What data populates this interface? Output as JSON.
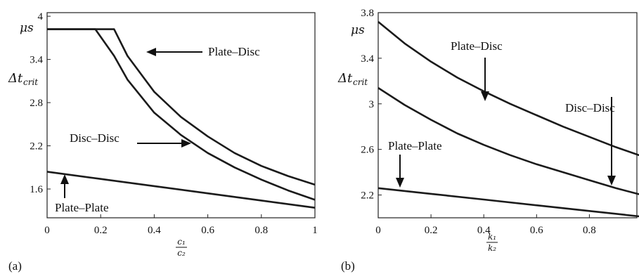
{
  "chart_data": [
    {
      "type": "line",
      "panel_label": "(a)",
      "xlabel_num": "c₁",
      "xlabel_den": "c₂",
      "ylabel_unit": "μs",
      "ylabel_main": "Δt",
      "ylabel_sub": "crit",
      "xlim": [
        0,
        1
      ],
      "ylim": [
        1.2,
        4.05
      ],
      "xticks": [
        "0",
        "0.2",
        "0.4",
        "0.6",
        "0.8",
        "1"
      ],
      "yticks": [
        "1.6",
        "2.2",
        "2.8",
        "3.4",
        "4"
      ],
      "grid": false,
      "series": [
        {
          "name": "Plate–Disc",
          "x": [
            0,
            0.25,
            0.3,
            0.4,
            0.5,
            0.6,
            0.7,
            0.8,
            0.9,
            1.0
          ],
          "y": [
            3.82,
            3.82,
            3.45,
            2.95,
            2.6,
            2.33,
            2.1,
            1.92,
            1.78,
            1.66
          ]
        },
        {
          "name": "Disc–Disc",
          "x": [
            0,
            0.18,
            0.25,
            0.3,
            0.4,
            0.5,
            0.6,
            0.7,
            0.8,
            0.9,
            1.0
          ],
          "y": [
            3.82,
            3.82,
            3.45,
            3.12,
            2.66,
            2.35,
            2.1,
            1.9,
            1.73,
            1.58,
            1.45
          ]
        },
        {
          "name": "Plate–Plate",
          "x": [
            0,
            0.2,
            0.4,
            0.6,
            0.8,
            1.0
          ],
          "y": [
            1.84,
            1.74,
            1.64,
            1.54,
            1.44,
            1.34
          ]
        }
      ],
      "annotations": [
        {
          "text": "Plate–Disc",
          "series": "Plate–Disc",
          "direction": "left"
        },
        {
          "text": "Disc–Disc",
          "series": "Disc–Disc",
          "direction": "right"
        },
        {
          "text": "Plate–Plate",
          "series": "Plate–Plate",
          "direction": "up"
        }
      ]
    },
    {
      "type": "line",
      "panel_label": "(b)",
      "xlabel_num": "k₁",
      "xlabel_den": "k₂",
      "ylabel_unit": "μs",
      "ylabel_main": "Δt",
      "ylabel_sub": "crit",
      "xlim": [
        0,
        1
      ],
      "ylim": [
        2.0,
        3.8
      ],
      "xticks": [
        "0",
        "0.2",
        "0.4",
        "0.6",
        "0.8"
      ],
      "yticks": [
        "2.2",
        "2.6",
        "3",
        "3.4",
        "3.8"
      ],
      "grid": false,
      "series": [
        {
          "name": "Plate–Disc",
          "x": [
            0,
            0.1,
            0.2,
            0.3,
            0.4,
            0.5,
            0.6,
            0.7,
            0.8,
            0.9,
            1.0
          ],
          "y": [
            3.72,
            3.53,
            3.37,
            3.23,
            3.11,
            3.0,
            2.9,
            2.8,
            2.71,
            2.62,
            2.54
          ]
        },
        {
          "name": "Disc–Disc",
          "x": [
            0,
            0.1,
            0.2,
            0.3,
            0.4,
            0.5,
            0.6,
            0.7,
            0.8,
            0.9,
            1.0
          ],
          "y": [
            3.14,
            2.99,
            2.86,
            2.74,
            2.64,
            2.55,
            2.47,
            2.4,
            2.33,
            2.26,
            2.2
          ]
        },
        {
          "name": "Plate–Plate",
          "x": [
            0,
            0.2,
            0.4,
            0.6,
            0.8,
            1.0
          ],
          "y": [
            2.26,
            2.21,
            2.16,
            2.11,
            2.06,
            2.01
          ]
        }
      ],
      "annotations": [
        {
          "text": "Plate–Disc",
          "series": "Plate–Disc",
          "direction": "down"
        },
        {
          "text": "Disc–Disc",
          "series": "Disc–Disc",
          "direction": "down"
        },
        {
          "text": "Plate–Plate",
          "series": "Plate–Plate",
          "direction": "down"
        }
      ]
    }
  ]
}
